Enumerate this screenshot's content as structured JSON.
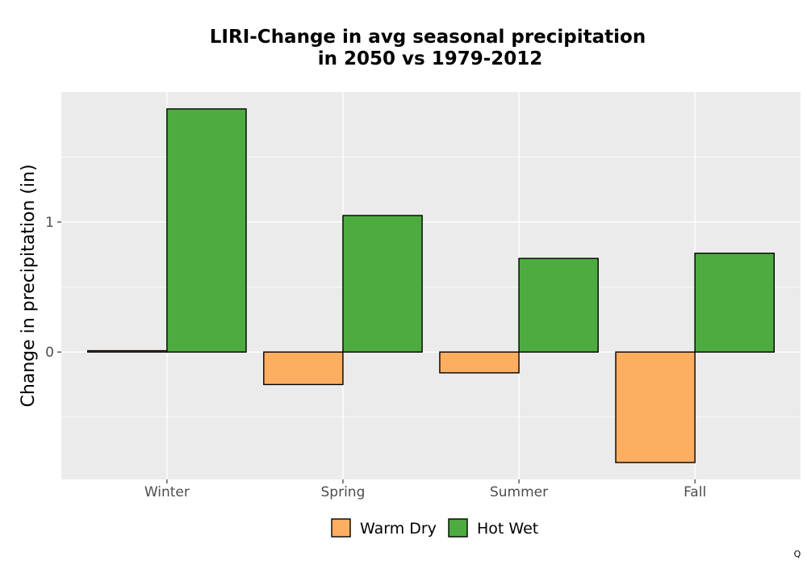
{
  "chart_data": {
    "type": "bar",
    "title_line1": "LIRI-Change in avg seasonal precipitation",
    "title_line2": "in 2050 vs 1979-2012",
    "xlabel": "",
    "ylabel": "Change in precipitation (in)",
    "categories": [
      "Winter",
      "Spring",
      "Summer",
      "Fall"
    ],
    "series": [
      {
        "name": "Warm Dry",
        "color": "#FDAE61",
        "values": [
          0.01,
          -0.25,
          -0.16,
          -0.85
        ]
      },
      {
        "name": "Hot Wet",
        "color": "#4DAC3F",
        "values": [
          1.87,
          1.05,
          0.72,
          0.76
        ]
      }
    ],
    "ylim": [
      -0.98,
      2.0
    ],
    "yticks": [
      0,
      1
    ],
    "ytick_labels": [
      "0",
      "1"
    ],
    "y_minor_gridlines": [
      -0.5,
      0.5,
      1.5
    ],
    "grid": true,
    "legend_position": "bottom",
    "panel_background": "#EBEBEB",
    "gridline_color": "#FFFFFF",
    "corner_mark": "Q"
  }
}
